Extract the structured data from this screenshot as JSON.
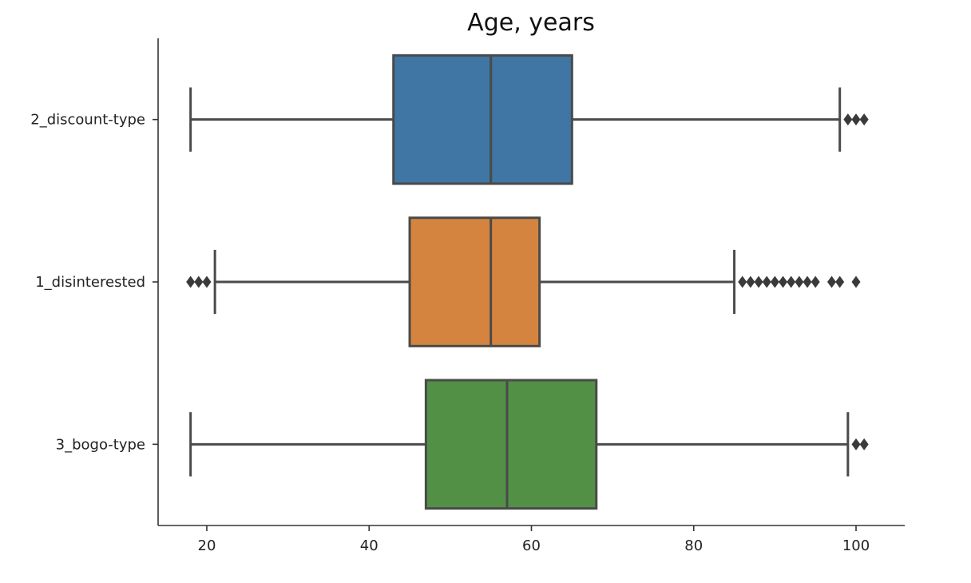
{
  "chart_data": {
    "type": "boxplot",
    "orientation": "horizontal",
    "title": "Age, years",
    "xlabel": "",
    "ylabel": "",
    "xlim": [
      14,
      106
    ],
    "xticks": [
      20,
      40,
      60,
      80,
      100
    ],
    "grid": false,
    "categories": [
      "2_discount-type",
      "1_disinterested",
      "3_bogo-type"
    ],
    "series": [
      {
        "category": "2_discount-type",
        "color": "#3f76a3",
        "whisker_low": 18,
        "q1": 43,
        "median": 55,
        "q3": 65,
        "whisker_high": 98,
        "outliers": [
          99,
          100,
          101
        ]
      },
      {
        "category": "1_disinterested",
        "color": "#d4843f",
        "whisker_low": 21,
        "q1": 45,
        "median": 55,
        "q3": 61,
        "whisker_high": 85,
        "outliers": [
          18,
          19,
          20,
          86,
          87,
          88,
          89,
          90,
          91,
          92,
          93,
          94,
          95,
          97,
          98,
          100
        ]
      },
      {
        "category": "3_bogo-type",
        "color": "#529046",
        "whisker_low": 18,
        "q1": 47,
        "median": 57,
        "q3": 68,
        "whisker_high": 99,
        "outliers": [
          100,
          101
        ]
      }
    ]
  }
}
